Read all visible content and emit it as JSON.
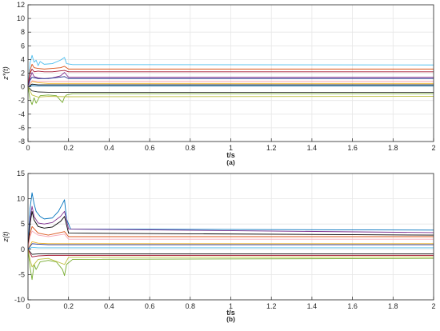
{
  "chart_data": [
    {
      "type": "line",
      "panel_label": "(a)",
      "xlabel": "t/s",
      "ylabel": "z*(t)",
      "xlim": [
        0,
        2
      ],
      "ylim": [
        -8,
        12
      ],
      "xticks": [
        "0",
        "0.2",
        "0.4",
        "0.6",
        "0.8",
        "1",
        "1.2",
        "1.4",
        "1.6",
        "1.8",
        "2"
      ],
      "yticks": [
        "-8",
        "-6",
        "-4",
        "-2",
        "0",
        "2",
        "4",
        "6",
        "8",
        "10",
        "12"
      ],
      "grid": true,
      "series": [
        {
          "color": "#4DBEEE",
          "x": [
            0,
            0.01,
            0.02,
            0.03,
            0.04,
            0.05,
            0.06,
            0.08,
            0.12,
            0.16,
            0.18,
            0.19,
            0.22,
            2
          ],
          "y": [
            0,
            3.5,
            4.6,
            3.6,
            3.9,
            3.1,
            3.7,
            3.3,
            3.4,
            3.9,
            4.3,
            3.4,
            3.25,
            3.2
          ]
        },
        {
          "color": "#D95319",
          "x": [
            0,
            0.01,
            0.02,
            0.03,
            0.05,
            0.08,
            0.12,
            0.16,
            0.18,
            0.2,
            2
          ],
          "y": [
            0,
            2.4,
            3.3,
            2.8,
            2.7,
            2.6,
            2.7,
            2.8,
            3.0,
            2.6,
            2.6
          ]
        },
        {
          "color": "#A2142F",
          "x": [
            0,
            0.01,
            0.02,
            0.03,
            0.05,
            0.08,
            0.12,
            0.18,
            0.2,
            2
          ],
          "y": [
            0,
            2.0,
            2.6,
            2.2,
            2.3,
            2.2,
            2.2,
            2.4,
            2.2,
            2.2
          ]
        },
        {
          "color": "#7E2F8E",
          "x": [
            0,
            0.01,
            0.02,
            0.03,
            0.05,
            0.08,
            0.12,
            0.16,
            0.18,
            0.2,
            2
          ],
          "y": [
            0,
            1.2,
            2.1,
            1.5,
            1.3,
            1.2,
            1.3,
            1.6,
            2.1,
            1.4,
            1.4
          ]
        },
        {
          "color": "#1F2E8C",
          "x": [
            0,
            0.01,
            0.02,
            0.05,
            0.1,
            0.18,
            0.2,
            2
          ],
          "y": [
            0,
            1.0,
            1.4,
            1.2,
            1.2,
            1.5,
            1.2,
            1.2
          ]
        },
        {
          "color": "#EDB120",
          "x": [
            0,
            0.02,
            0.05,
            0.1,
            0.2,
            2
          ],
          "y": [
            0,
            0.8,
            0.6,
            0.5,
            0.5,
            0.5
          ]
        },
        {
          "color": "#000000",
          "x": [
            0,
            0.02,
            0.05,
            0.1,
            0.2,
            2
          ],
          "y": [
            0,
            0.4,
            0.3,
            0.3,
            0.3,
            0.3
          ]
        },
        {
          "color": "#0072BD",
          "x": [
            0,
            0.02,
            0.05,
            0.1,
            0.2,
            2
          ],
          "y": [
            0,
            0.2,
            0.15,
            0.15,
            0.15,
            0.15
          ]
        },
        {
          "color": "#2F2F2F",
          "x": [
            0,
            0.02,
            0.05,
            0.1,
            0.2,
            2
          ],
          "y": [
            0,
            -0.6,
            -0.75,
            -0.8,
            -0.8,
            -0.8
          ]
        },
        {
          "color": "#77AC30",
          "x": [
            0,
            0.01,
            0.02,
            0.03,
            0.04,
            0.06,
            0.1,
            0.14,
            0.17,
            0.18,
            0.19,
            0.22,
            2
          ],
          "y": [
            0,
            -1.8,
            -2.6,
            -1.6,
            -2.4,
            -1.3,
            -1.2,
            -1.3,
            -2.3,
            -1.5,
            -1.2,
            -1.0,
            -1.0
          ]
        },
        {
          "color": "#BFBF3F",
          "x": [
            0,
            0.02,
            0.05,
            0.1,
            0.2,
            2
          ],
          "y": [
            0,
            -1.2,
            -1.5,
            -1.4,
            -1.45,
            -1.4
          ]
        },
        {
          "color": "#F7A8B8",
          "x": [
            0,
            0.02,
            0.05,
            0.1,
            0.2,
            2
          ],
          "y": [
            0,
            0.9,
            0.8,
            0.8,
            0.8,
            0.8
          ]
        }
      ]
    },
    {
      "type": "line",
      "panel_label": "(b)",
      "xlabel": "t/s",
      "ylabel": "z(t)",
      "xlim": [
        0,
        2
      ],
      "ylim": [
        -10,
        15
      ],
      "xticks": [
        "0",
        "0.2",
        "0.4",
        "0.6",
        "0.8",
        "1",
        "1.2",
        "1.4",
        "1.6",
        "1.8",
        "2"
      ],
      "yticks": [
        "-10",
        "-5",
        "0",
        "5",
        "10",
        "15"
      ],
      "grid": true,
      "series": [
        {
          "color": "#0072BD",
          "x": [
            0,
            0.01,
            0.02,
            0.03,
            0.04,
            0.06,
            0.08,
            0.12,
            0.15,
            0.17,
            0.18,
            0.19,
            0.21,
            2
          ],
          "y": [
            0,
            8,
            11.2,
            9,
            7.5,
            6.5,
            6,
            6.2,
            7.5,
            9,
            9.8,
            6,
            4,
            3.8
          ]
        },
        {
          "color": "#7E2F8E",
          "x": [
            0,
            0.01,
            0.02,
            0.03,
            0.05,
            0.08,
            0.12,
            0.16,
            0.18,
            0.2,
            2
          ],
          "y": [
            0,
            6,
            8.5,
            6.5,
            5.2,
            5,
            5.3,
            6.5,
            7.5,
            4,
            3.3
          ]
        },
        {
          "color": "#000000",
          "x": [
            0,
            0.01,
            0.02,
            0.03,
            0.05,
            0.08,
            0.12,
            0.16,
            0.18,
            0.2,
            2
          ],
          "y": [
            0,
            5,
            7.5,
            5.8,
            4.5,
            4.2,
            4.4,
            5.5,
            6.5,
            3.2,
            2.8
          ]
        },
        {
          "color": "#D95319",
          "x": [
            0,
            0.01,
            0.02,
            0.05,
            0.1,
            0.18,
            0.2,
            2
          ],
          "y": [
            0,
            3,
            4.5,
            3.2,
            2.8,
            3.5,
            2.5,
            2.5
          ]
        },
        {
          "color": "#F7A8B8",
          "x": [
            0,
            0.01,
            0.02,
            0.05,
            0.1,
            0.18,
            0.2,
            2
          ],
          "y": [
            0,
            2.5,
            3.6,
            2.8,
            2.5,
            3,
            2.0,
            2.0
          ]
        },
        {
          "color": "#EDB120",
          "x": [
            0,
            0.02,
            0.05,
            0.1,
            0.2,
            2
          ],
          "y": [
            0,
            1.5,
            1.2,
            1.1,
            1.1,
            1.1
          ]
        },
        {
          "color": "#1F2E8C",
          "x": [
            0,
            0.02,
            0.05,
            0.1,
            0.2,
            2
          ],
          "y": [
            0,
            1.1,
            1.0,
            0.9,
            0.9,
            0.9
          ]
        },
        {
          "color": "#4DBEEE",
          "x": [
            0,
            0.02,
            0.05,
            0.1,
            0.2,
            2
          ],
          "y": [
            0,
            0.4,
            0.3,
            0.3,
            0.3,
            0.3
          ]
        },
        {
          "color": "#2F2F2F",
          "x": [
            0,
            0.02,
            0.05,
            0.1,
            0.2,
            2
          ],
          "y": [
            0,
            -1,
            -0.9,
            -0.9,
            -0.9,
            -0.9
          ]
        },
        {
          "color": "#A2142F",
          "x": [
            0,
            0.02,
            0.05,
            0.1,
            0.2,
            2
          ],
          "y": [
            0,
            -1.5,
            -1.3,
            -1.2,
            -1.2,
            -1.2
          ]
        },
        {
          "color": "#77AC30",
          "x": [
            0,
            0.01,
            0.02,
            0.03,
            0.04,
            0.06,
            0.1,
            0.14,
            0.17,
            0.18,
            0.19,
            0.22,
            2
          ],
          "y": [
            0,
            -3.5,
            -6,
            -3,
            -4,
            -2.5,
            -2.2,
            -2.5,
            -4,
            -5.2,
            -3,
            -2,
            -1.8
          ]
        },
        {
          "color": "#BFBF3F",
          "x": [
            0,
            0.01,
            0.02,
            0.05,
            0.1,
            0.18,
            0.2,
            2
          ],
          "y": [
            0,
            -2,
            -3.5,
            -2,
            -1.8,
            -3,
            -1.6,
            -1.5
          ]
        }
      ]
    }
  ]
}
